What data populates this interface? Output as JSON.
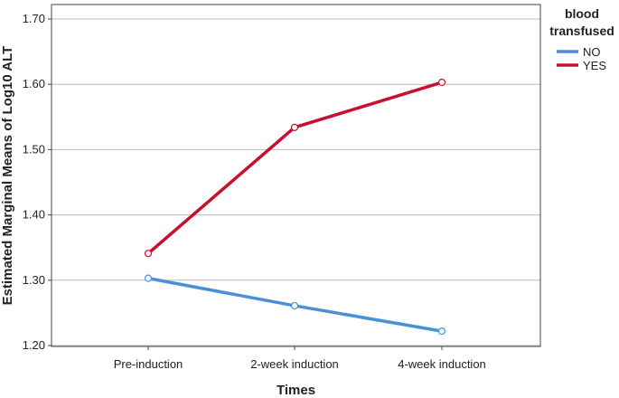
{
  "chart_data": {
    "type": "line",
    "xlabel": "Times",
    "ylabel": "Estimated Marginal Means of Log10 ALT",
    "categories": [
      "Pre-induction",
      "2-week induction",
      "4-week induction"
    ],
    "ylim": [
      1.2,
      1.7
    ],
    "yticks": [
      "1.20",
      "1.30",
      "1.40",
      "1.50",
      "1.60",
      "1.70"
    ],
    "grid": "horizontal",
    "legend": {
      "title_lines": [
        "blood",
        "transfused"
      ],
      "placement": "right"
    },
    "series": [
      {
        "name": "NO",
        "color": "#4a90d9",
        "values": [
          1.303,
          1.261,
          1.222
        ]
      },
      {
        "name": "YES",
        "color": "#c8102e",
        "values": [
          1.341,
          1.534,
          1.603
        ]
      }
    ]
  }
}
